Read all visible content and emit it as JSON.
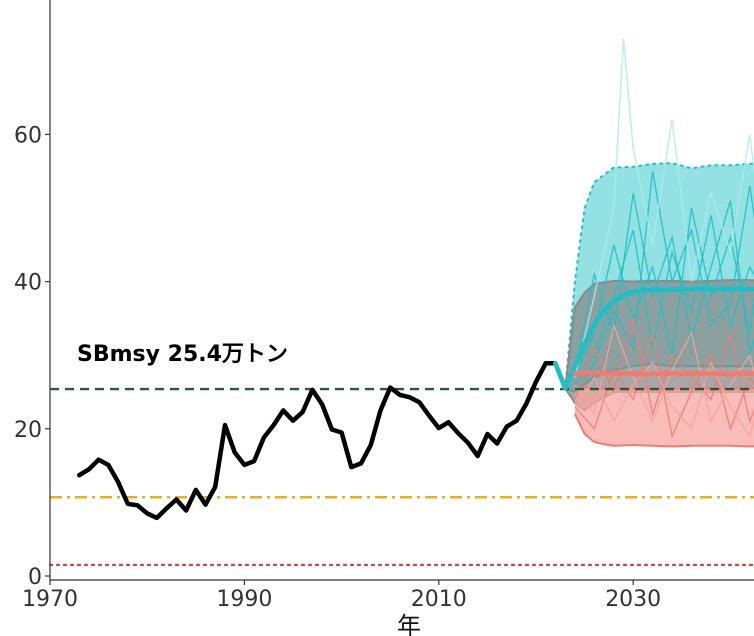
{
  "chart_data": {
    "type": "line",
    "title": "",
    "xlabel": "年",
    "ylabel": "",
    "xlim": [
      1970,
      2050
    ],
    "ylim": [
      0,
      75
    ],
    "x_ticks": [
      1970,
      1990,
      2010,
      2030
    ],
    "y_ticks": [
      0,
      20,
      40,
      60
    ],
    "grid": false,
    "reference_lines": [
      {
        "value": 25.4,
        "label": "SBmsy 25.4万トン",
        "style": "dashed",
        "color": "#1f5c44"
      },
      {
        "value": 10.7,
        "label": "",
        "style": "dashdot",
        "color": "#e3b21c"
      },
      {
        "value": 1.5,
        "label": "",
        "style": "dotted",
        "color": "#c0504d"
      }
    ],
    "series": [
      {
        "style": "historical",
        "color": "#000000",
        "x": [
          1973,
          1974,
          1975,
          1976,
          1977,
          1978,
          1979,
          1980,
          1981,
          1982,
          1983,
          1984,
          1985,
          1986,
          1987,
          1988,
          1989,
          1990,
          1991,
          1992,
          1993,
          1994,
          1995,
          1996,
          1997,
          1998,
          1999,
          2000,
          2001,
          2002,
          2003,
          2004,
          2005,
          2006,
          2007,
          2008,
          2009,
          2010,
          2011,
          2012,
          2013,
          2014,
          2015,
          2016,
          2017,
          2018,
          2019,
          2020,
          2021,
          2022
        ],
        "values": [
          13.7,
          14.5,
          15.8,
          15.1,
          12.8,
          9.8,
          9.6,
          8.5,
          7.9,
          9.2,
          10.4,
          8.9,
          11.7,
          9.7,
          12.1,
          20.5,
          16.8,
          15.1,
          15.6,
          18.8,
          20.5,
          22.5,
          21.1,
          22.3,
          25.3,
          23.3,
          19.9,
          19.5,
          14.8,
          15.3,
          17.8,
          22.5,
          25.6,
          24.6,
          24.3,
          23.6,
          21.8,
          20.1,
          20.9,
          19.4,
          18.1,
          16.3,
          19.3,
          18.0,
          20.3,
          21.1,
          23.4,
          26.4,
          28.9,
          28.9
        ]
      },
      {
        "style": "projection-median",
        "color": "#1fbfc7",
        "x": [
          2022,
          2023,
          2024,
          2025,
          2026,
          2027,
          2028,
          2029,
          2030,
          2031,
          2032,
          2033,
          2034,
          2035,
          2036,
          2037,
          2038,
          2039,
          2040,
          2041,
          2042,
          2043,
          2044,
          2045,
          2046
        ],
        "values": [
          28.9,
          25.5,
          28.5,
          31.5,
          34.2,
          36.1,
          37.3,
          38.1,
          38.6,
          38.8,
          38.9,
          38.9,
          38.9,
          39.0,
          39.0,
          39.0,
          39.0,
          39.0,
          39.0,
          39.0,
          39.0,
          39.0,
          39.0,
          39.0,
          38.9
        ]
      },
      {
        "style": "projection-median",
        "color": "#f07b73",
        "x": [
          2024,
          2025,
          2026,
          2027,
          2028,
          2029,
          2030,
          2031,
          2032,
          2033,
          2034,
          2035,
          2036,
          2037,
          2038,
          2039,
          2040,
          2041,
          2042,
          2043,
          2044,
          2045,
          2046
        ],
        "values": [
          27.5,
          27.6,
          27.6,
          27.5,
          27.5,
          27.5,
          27.5,
          27.4,
          27.5,
          27.5,
          27.5,
          27.4,
          27.5,
          27.5,
          27.5,
          27.5,
          27.4,
          27.5,
          27.5,
          27.5,
          27.5,
          27.5,
          27.5
        ]
      }
    ],
    "bands": [
      {
        "color": "#6fd7da",
        "edge_color": "#1fbfc7",
        "x": [
          2023,
          2024,
          2025,
          2026,
          2028,
          2030,
          2032,
          2034,
          2036,
          2038,
          2040,
          2042,
          2044,
          2046
        ],
        "upper": [
          25.5,
          40.0,
          50.0,
          53.5,
          55.5,
          55.6,
          56.0,
          56.1,
          55.4,
          55.8,
          55.8,
          56.0,
          56.1,
          55.9
        ],
        "lower": [
          25.5,
          25.0,
          26.0,
          27.0,
          28.0,
          28.5,
          28.8,
          28.5,
          28.5,
          28.5,
          28.5,
          28.5,
          28.5,
          28.5
        ]
      },
      {
        "color": "#8a8a8a",
        "edge_color": "#8a8a8a",
        "x": [
          2023,
          2024,
          2025,
          2026,
          2028,
          2030,
          2032,
          2034,
          2036,
          2038,
          2040,
          2042,
          2044,
          2046
        ],
        "upper": [
          25.5,
          36.5,
          38.5,
          39.7,
          40.1,
          40.0,
          40.1,
          40.1,
          40.0,
          40.1,
          40.2,
          40.2,
          40.0,
          40.1
        ],
        "lower": [
          25.5,
          23.5,
          22.5,
          23.5,
          25.0,
          25.0,
          25.0,
          25.0,
          25.0,
          25.0,
          25.0,
          25.0,
          25.0,
          25.0
        ]
      },
      {
        "color": "#f6a6a1",
        "edge_color": "#f07b73",
        "x": [
          2024,
          2025,
          2026,
          2027,
          2028,
          2030,
          2032,
          2034,
          2036,
          2038,
          2040,
          2042,
          2044,
          2046
        ],
        "upper": [
          25.6,
          25.6,
          25.5,
          25.5,
          25.5,
          25.5,
          25.5,
          25.5,
          25.5,
          25.5,
          25.5,
          25.5,
          25.5,
          25.5
        ],
        "lower": [
          22.0,
          19.3,
          18.2,
          17.9,
          17.7,
          17.8,
          17.7,
          17.6,
          17.7,
          17.7,
          17.7,
          17.6,
          17.7,
          17.7
        ]
      }
    ],
    "trajectories": [
      {
        "color": "#1fbfc7",
        "x": [
          2024,
          2026,
          2028,
          2030,
          2032,
          2034,
          2036,
          2038,
          2040,
          2042,
          2044,
          2046
        ],
        "values": [
          27,
          33,
          45,
          35,
          42,
          30,
          50,
          38,
          46,
          33,
          55,
          40
        ]
      },
      {
        "color": "#1fbfc7",
        "x": [
          2024,
          2026,
          2028,
          2030,
          2032,
          2034,
          2036,
          2038,
          2040,
          2042,
          2044,
          2046
        ],
        "values": [
          26,
          30,
          38,
          47,
          31,
          44,
          36,
          49,
          34,
          42,
          37,
          50
        ]
      },
      {
        "color": "#1fbfc7",
        "x": [
          2024,
          2026,
          2028,
          2030,
          2032,
          2034,
          2036,
          2038,
          2040,
          2042,
          2044,
          2046
        ],
        "values": [
          28,
          41,
          33,
          52,
          38,
          46,
          32,
          42,
          51,
          30,
          40,
          36
        ]
      },
      {
        "color": "#1fbfc7",
        "x": [
          2024,
          2026,
          2028,
          2030,
          2032,
          2034,
          2036,
          2038,
          2040,
          2042,
          2044,
          2046
        ],
        "values": [
          25,
          29,
          36,
          31,
          55,
          40,
          47,
          34,
          37,
          53,
          35,
          29
        ]
      },
      {
        "color": "#a8ecec",
        "x": [
          2024,
          2026,
          2028,
          2029,
          2030,
          2032,
          2034,
          2036,
          2038,
          2040,
          2042,
          2044,
          2046
        ],
        "values": [
          27,
          38,
          50,
          73,
          58,
          45,
          62,
          40,
          52,
          44,
          60,
          38,
          48
        ]
      },
      {
        "color": "#f07b73",
        "x": [
          2024,
          2026,
          2028,
          2030,
          2032,
          2034,
          2036,
          2038,
          2040,
          2042,
          2044,
          2046
        ],
        "values": [
          24,
          31,
          25,
          35,
          22,
          30,
          27,
          24,
          33,
          21,
          28,
          17
        ]
      },
      {
        "color": "#f07b73",
        "x": [
          2024,
          2026,
          2028,
          2030,
          2032,
          2034,
          2036,
          2038,
          2040,
          2042,
          2044,
          2046
        ],
        "values": [
          23,
          20,
          28,
          24,
          33,
          19,
          25,
          30,
          20,
          27,
          23,
          26
        ]
      },
      {
        "color": "#f4a39d",
        "x": [
          2024,
          2026,
          2028,
          2030,
          2032,
          2034,
          2036,
          2038,
          2040,
          2042,
          2044,
          2046
        ],
        "values": [
          26,
          22,
          34,
          27,
          21,
          28,
          33,
          21,
          26,
          30,
          19,
          24
        ]
      },
      {
        "color": "#f4a39d",
        "x": [
          2024,
          2026,
          2028,
          2030,
          2032,
          2034,
          2036,
          2038,
          2040,
          2042,
          2044,
          2046
        ],
        "values": [
          22,
          27,
          21,
          26,
          29,
          23,
          20,
          29,
          23,
          19,
          29,
          22
        ]
      }
    ]
  }
}
